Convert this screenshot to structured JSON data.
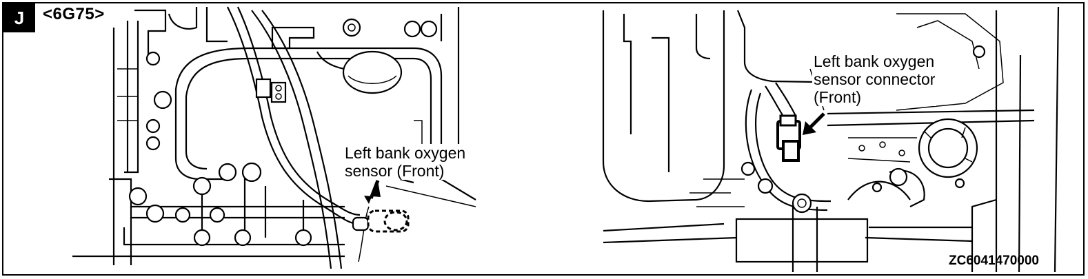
{
  "header": {
    "badge": "J",
    "engine": "<6G75>"
  },
  "callouts": {
    "left_sensor": [
      "Left bank oxygen",
      "sensor (Front)"
    ],
    "right_connector": [
      "Left bank oxygen",
      "sensor connector",
      "(Front)"
    ]
  },
  "figure_code": "ZC6041470000"
}
